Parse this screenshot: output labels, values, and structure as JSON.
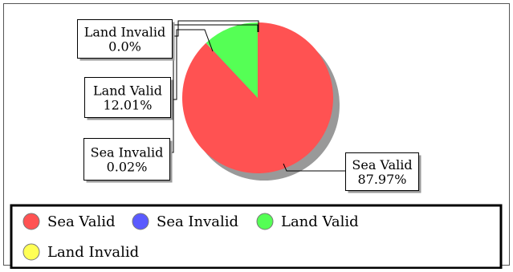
{
  "chart_data": {
    "type": "pie",
    "title": "",
    "slices": [
      {
        "label": "Sea Valid",
        "value": 87.97,
        "display": "87.97%",
        "color": "#ff5252"
      },
      {
        "label": "Sea Invalid",
        "value": 0.02,
        "display": "0.02%",
        "color": "#5a5aff"
      },
      {
        "label": "Land Valid",
        "value": 12.01,
        "display": "12.01%",
        "color": "#55ff55"
      },
      {
        "label": "Land Invalid",
        "value": 0.0,
        "display": "0.0%",
        "color": "#ffff55"
      }
    ],
    "legend_position": "bottom",
    "shadow_color": "#999999"
  }
}
